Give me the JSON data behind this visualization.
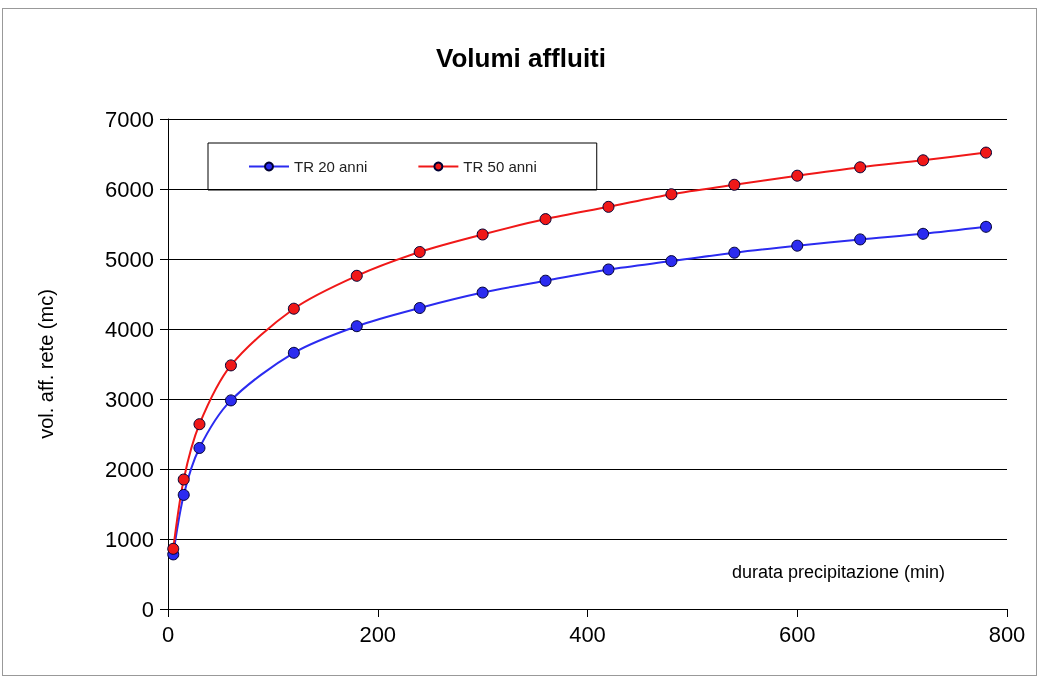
{
  "chart_data": {
    "type": "line",
    "title": "Volumi affluiti",
    "xlabel": "durata precipitazione (min)",
    "ylabel": "vol. aff. rete (mc)",
    "x": [
      5,
      15,
      30,
      60,
      120,
      180,
      240,
      300,
      360,
      420,
      480,
      540,
      600,
      660,
      720,
      780
    ],
    "series": [
      {
        "name": "TR 20 anni",
        "color": "#2b2bf0",
        "values": [
          780,
          1630,
          2300,
          2980,
          3660,
          4040,
          4300,
          4520,
          4690,
          4850,
          4970,
          5090,
          5190,
          5280,
          5360,
          5460
        ]
      },
      {
        "name": "TR 50 anni",
        "color": "#f01818",
        "values": [
          860,
          1850,
          2640,
          3480,
          4290,
          4760,
          5100,
          5350,
          5570,
          5745,
          5925,
          6060,
          6190,
          6310,
          6410,
          6520
        ]
      }
    ],
    "xlim": [
      0,
      800
    ],
    "xticks": [
      0,
      200,
      400,
      600,
      800
    ],
    "ylim": [
      0,
      7000
    ],
    "yticks": [
      0,
      1000,
      2000,
      3000,
      4000,
      5000,
      6000,
      7000
    ],
    "grid": "y",
    "legend": "top left",
    "marker": "circle",
    "line_style": "solid"
  }
}
